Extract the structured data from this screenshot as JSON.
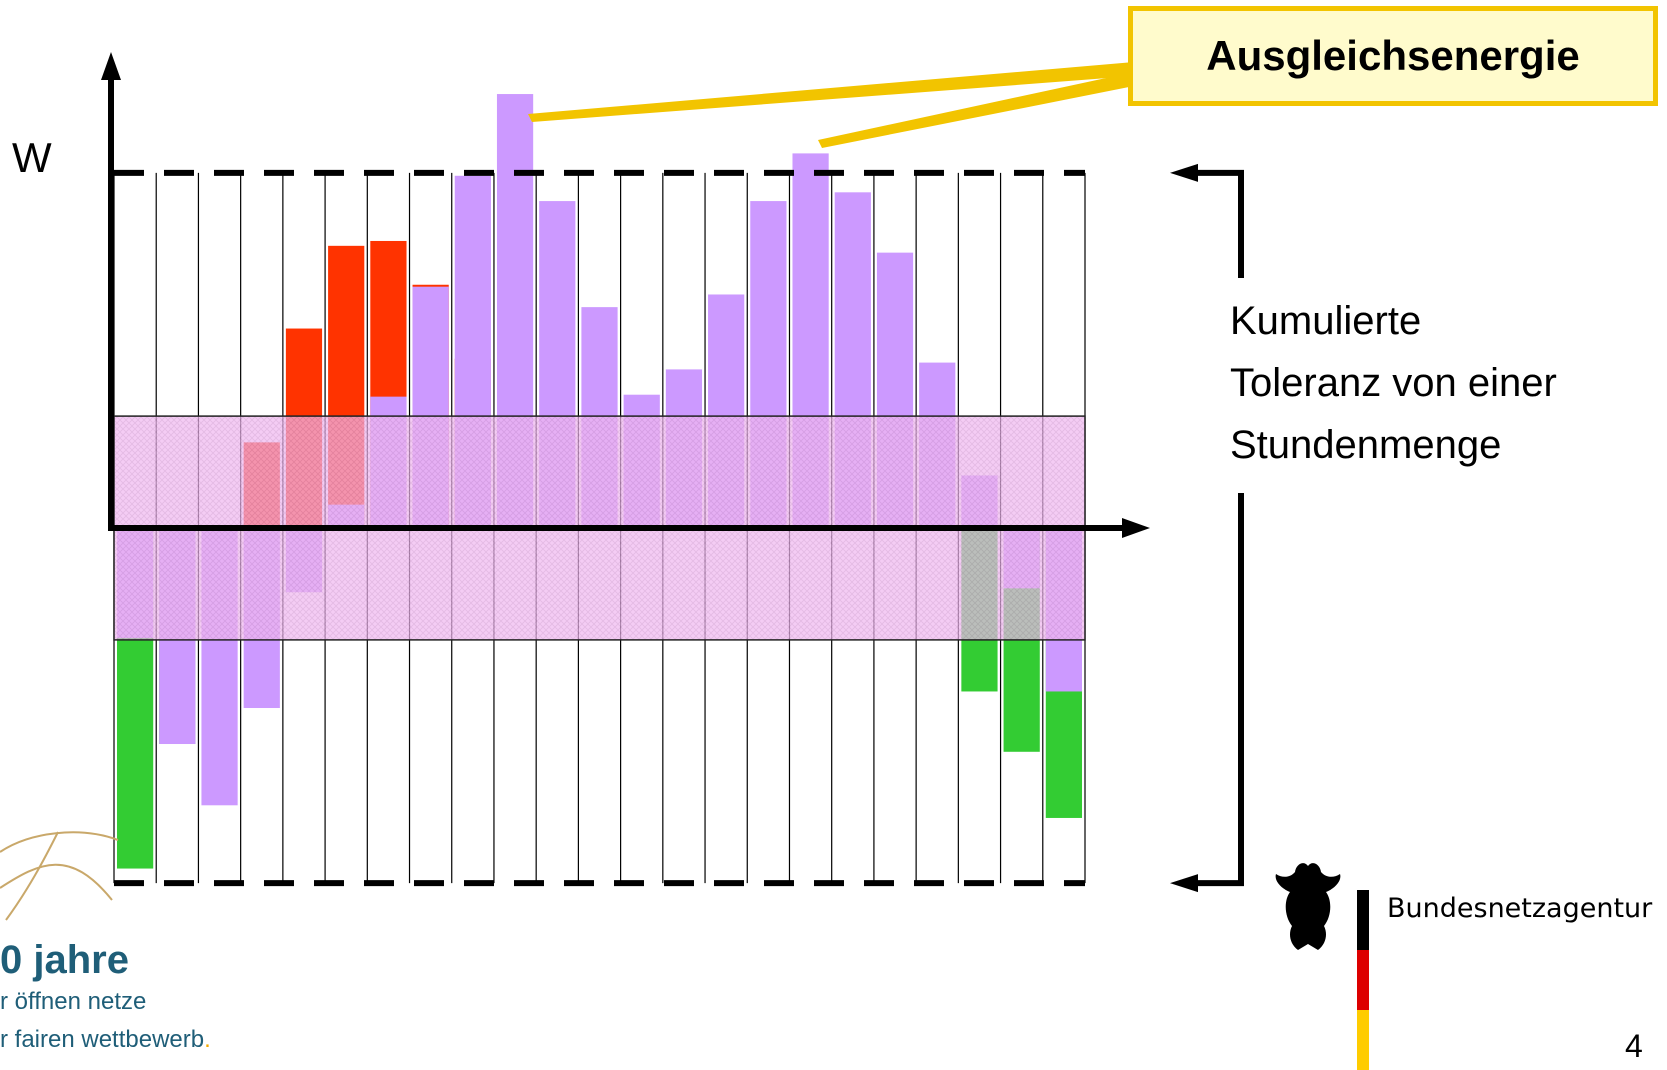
{
  "chart_data": {
    "type": "bar",
    "title": "",
    "xlabel": "",
    "ylabel": "W",
    "xlim": [
      0,
      23
    ],
    "ylim": [
      -370,
      450
    ],
    "grid": "vertical",
    "tolerance_label_lines": [
      "Kumulierte",
      "Toleranz von einer",
      "Stundenmenge"
    ],
    "tolerance_band": [
      -115,
      115
    ],
    "tolerance_limit": [
      -365,
      365
    ],
    "callout_label": "Ausgleichsenergie",
    "series": [
      {
        "name": "",
        "color": "#ff3300",
        "values": [
          0,
          0,
          0,
          88,
          205,
          290,
          295,
          250,
          174,
          0,
          0,
          0,
          0,
          0,
          0,
          0,
          0,
          0,
          0,
          0,
          0,
          0,
          0
        ]
      },
      {
        "name": "",
        "color": "#33cc33",
        "values": [
          -350,
          -222,
          0,
          0,
          0,
          0,
          0,
          0,
          0,
          0,
          0,
          0,
          0,
          0,
          0,
          0,
          0,
          0,
          0,
          0,
          -168,
          -230,
          -298
        ]
      },
      {
        "name": "",
        "color": "#cc99ff",
        "values": [
          -113,
          -222,
          -285,
          -185,
          -66,
          24,
          135,
          248,
          362,
          446,
          336,
          227,
          137,
          163,
          240,
          336,
          385,
          345,
          283,
          170,
          54,
          -62,
          -168
        ]
      }
    ]
  },
  "logo_left": {
    "title": "0 jahre",
    "line1": "r öffnen netze",
    "line2": "r fairen wettbewerb",
    "dot": "."
  },
  "bnetza": {
    "name": "Bundesnetzagentur"
  },
  "page_number": "4",
  "colors": {
    "red": "#ff3300",
    "green": "#33cc33",
    "violet": "#cc99ff",
    "band": "#f0b8f0",
    "band_outline": "#222222",
    "callout_fill": "#fffbcc",
    "callout_border": "#f2c400",
    "flag_black": "#000000",
    "flag_red": "#dd0000",
    "flag_gold": "#ffcc00"
  }
}
